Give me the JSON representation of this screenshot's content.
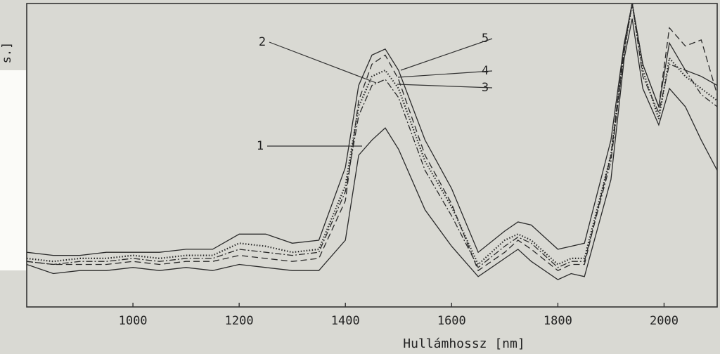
{
  "chart_data": {
    "type": "line",
    "xlabel": "Hullámhossz [nm]",
    "ylabel": "s.]",
    "xlim": [
      800,
      2100
    ],
    "ylim": [
      0,
      1
    ],
    "xticks": [
      1000,
      1200,
      1400,
      1600,
      1800,
      2000
    ],
    "x": [
      800,
      850,
      900,
      950,
      1000,
      1050,
      1100,
      1150,
      1200,
      1250,
      1300,
      1350,
      1400,
      1425,
      1450,
      1475,
      1500,
      1550,
      1600,
      1650,
      1700,
      1725,
      1750,
      1800,
      1825,
      1850,
      1900,
      1925,
      1940,
      1960,
      1990,
      2010,
      2040,
      2070,
      2100
    ],
    "series": [
      {
        "name": "1",
        "color": "#2a2a2a",
        "line_style": "solid",
        "values": [
          0.14,
          0.11,
          0.12,
          0.12,
          0.13,
          0.12,
          0.13,
          0.12,
          0.14,
          0.13,
          0.12,
          0.12,
          0.22,
          0.5,
          0.55,
          0.59,
          0.52,
          0.32,
          0.2,
          0.1,
          0.16,
          0.19,
          0.15,
          0.09,
          0.11,
          0.1,
          0.42,
          0.82,
          0.95,
          0.72,
          0.6,
          0.72,
          0.66,
          0.55,
          0.45
        ]
      },
      {
        "name": "2",
        "color": "#2a2a2a",
        "line_style": "dashed",
        "values": [
          0.15,
          0.14,
          0.14,
          0.14,
          0.15,
          0.14,
          0.15,
          0.15,
          0.17,
          0.16,
          0.15,
          0.16,
          0.35,
          0.68,
          0.8,
          0.83,
          0.75,
          0.5,
          0.34,
          0.12,
          0.18,
          0.22,
          0.19,
          0.12,
          0.14,
          0.14,
          0.5,
          0.86,
          1.0,
          0.8,
          0.66,
          0.92,
          0.86,
          0.88,
          0.7
        ]
      },
      {
        "name": "3",
        "color": "#2a2a2a",
        "line_style": "dashdot",
        "values": [
          0.15,
          0.14,
          0.15,
          0.15,
          0.16,
          0.15,
          0.16,
          0.16,
          0.19,
          0.18,
          0.17,
          0.18,
          0.38,
          0.63,
          0.73,
          0.75,
          0.69,
          0.45,
          0.3,
          0.13,
          0.2,
          0.23,
          0.21,
          0.13,
          0.15,
          0.15,
          0.48,
          0.84,
          1.0,
          0.76,
          0.64,
          0.8,
          0.78,
          0.7,
          0.66
        ]
      },
      {
        "name": "4",
        "color": "#2a2a2a",
        "line_style": "dotted",
        "values": [
          0.16,
          0.15,
          0.16,
          0.16,
          0.17,
          0.16,
          0.17,
          0.17,
          0.21,
          0.2,
          0.18,
          0.19,
          0.4,
          0.66,
          0.76,
          0.78,
          0.72,
          0.48,
          0.33,
          0.14,
          0.22,
          0.24,
          0.22,
          0.14,
          0.16,
          0.16,
          0.5,
          0.85,
          1.0,
          0.78,
          0.62,
          0.82,
          0.76,
          0.72,
          0.68
        ]
      },
      {
        "name": "5",
        "color": "#2a2a2a",
        "line_style": "solid",
        "values": [
          0.18,
          0.17,
          0.17,
          0.18,
          0.18,
          0.18,
          0.19,
          0.19,
          0.24,
          0.24,
          0.21,
          0.22,
          0.46,
          0.73,
          0.83,
          0.85,
          0.78,
          0.55,
          0.39,
          0.18,
          0.25,
          0.28,
          0.27,
          0.19,
          0.2,
          0.21,
          0.55,
          0.87,
          1.0,
          0.8,
          0.66,
          0.87,
          0.78,
          0.76,
          0.73
        ]
      }
    ]
  }
}
